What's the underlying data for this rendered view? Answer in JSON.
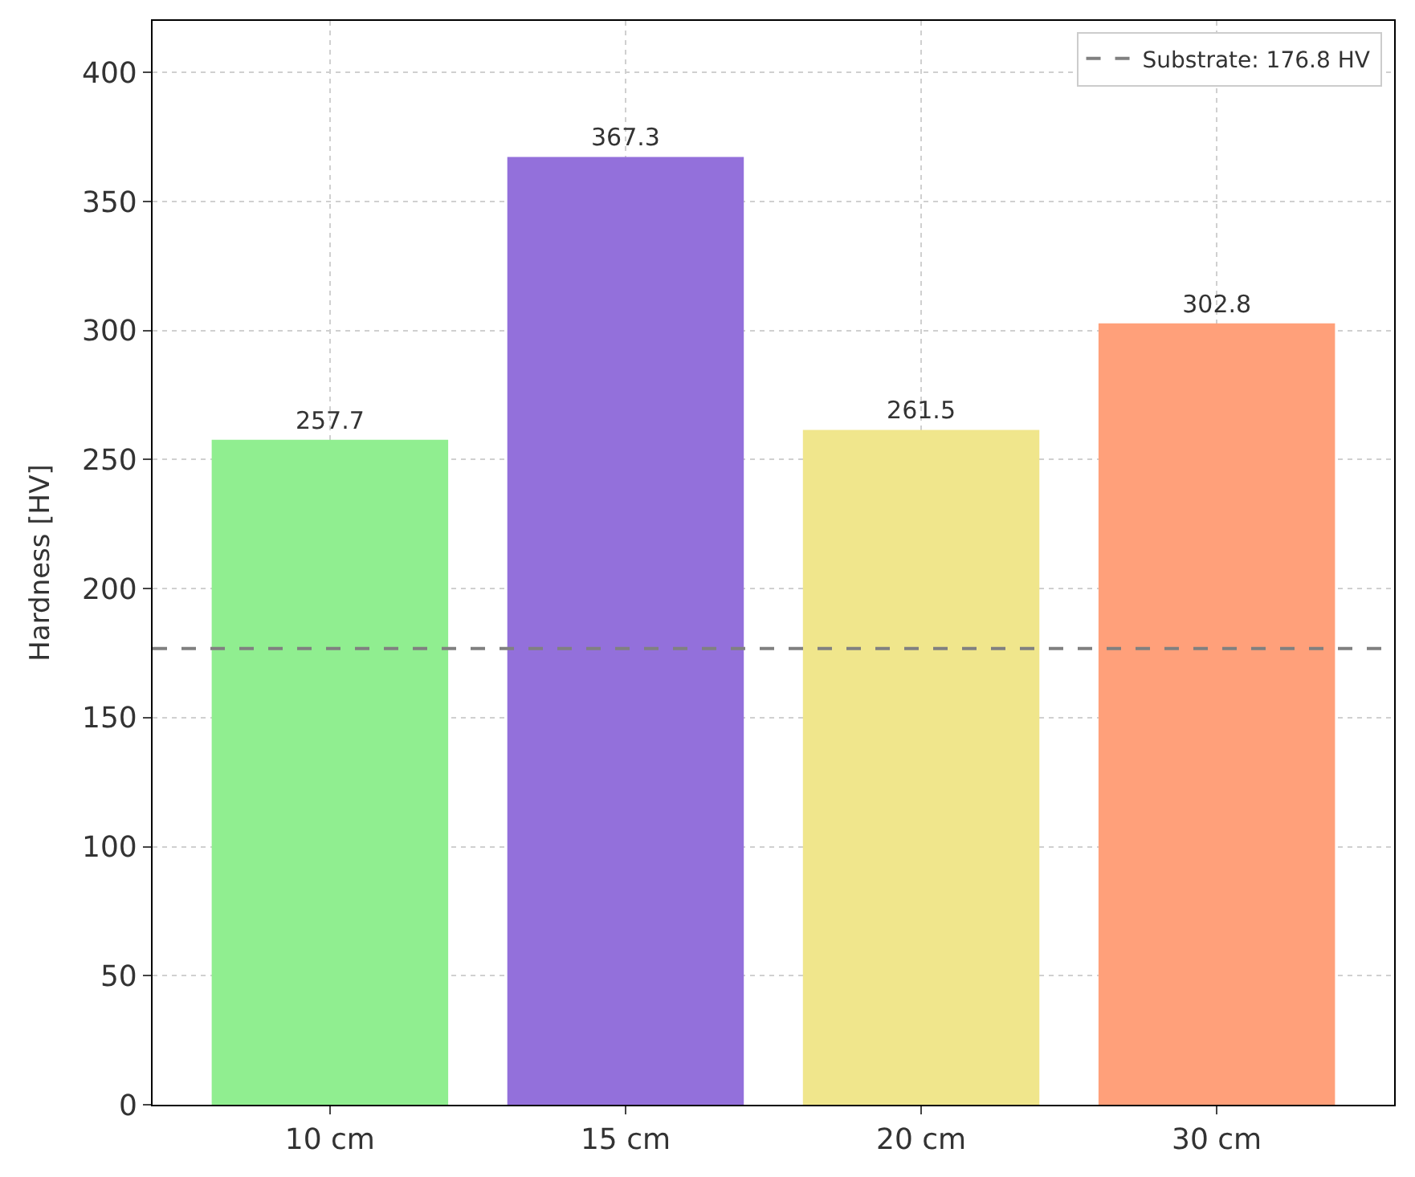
{
  "chart_data": {
    "type": "bar",
    "ylabel": "Hardness [HV]",
    "categories": [
      "10 cm",
      "15 cm",
      "20 cm",
      "30 cm"
    ],
    "values": [
      257.7,
      367.3,
      261.5,
      302.8
    ],
    "colors": [
      "#90ee90",
      "#9370db",
      "#f0e68c",
      "#ffa07a"
    ],
    "data_labels": true,
    "ylim": [
      0,
      420
    ],
    "yticks": [
      0,
      50,
      100,
      150,
      200,
      250,
      300,
      350,
      400
    ],
    "ref_lines": [
      {
        "axis": "y",
        "value": 176.8,
        "label": "Substrate: 176.8 HV",
        "color": "#808080",
        "line_style": "dashed"
      }
    ],
    "grid": true,
    "legend": "top right"
  }
}
